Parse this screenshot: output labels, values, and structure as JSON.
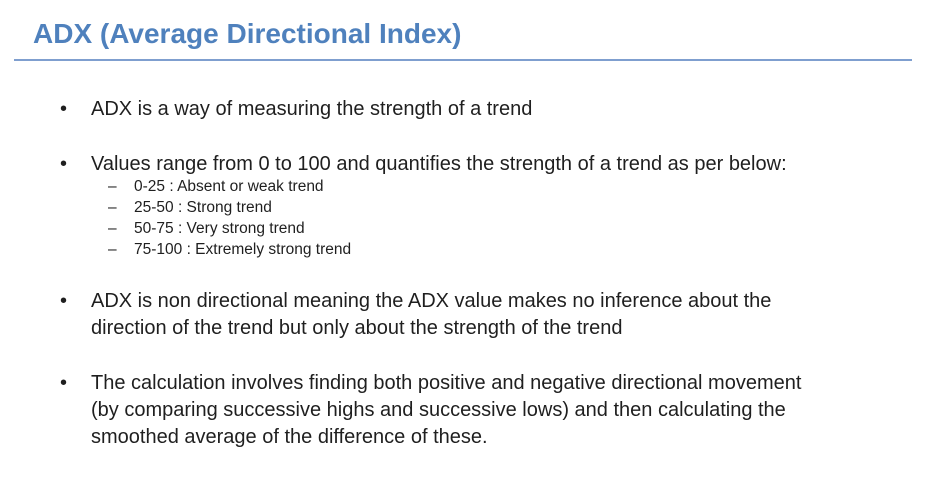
{
  "title": "ADX (Average Directional Index)",
  "bullet_symbol": "•",
  "dash_symbol": "–",
  "bullets": [
    {
      "lines": [
        "ADX is a way of measuring the strength of a trend"
      ]
    },
    {
      "lines": [
        "Values range from 0 to 100 and quantifies the strength of a trend as per below:"
      ],
      "sub_items": [
        "0-25 : Absent or weak trend",
        "25-50 : Strong trend",
        "50-75 : Very strong trend",
        "75-100 : Extremely strong trend"
      ]
    },
    {
      "lines": [
        "ADX is non directional meaning the ADX value makes no inference about the",
        "direction of the trend but only about the strength of the trend"
      ]
    },
    {
      "lines": [
        "The calculation involves finding both positive and negative directional movement",
        "(by comparing successive highs and successive lows) and then calculating the",
        "smoothed average of the difference of these."
      ]
    }
  ]
}
